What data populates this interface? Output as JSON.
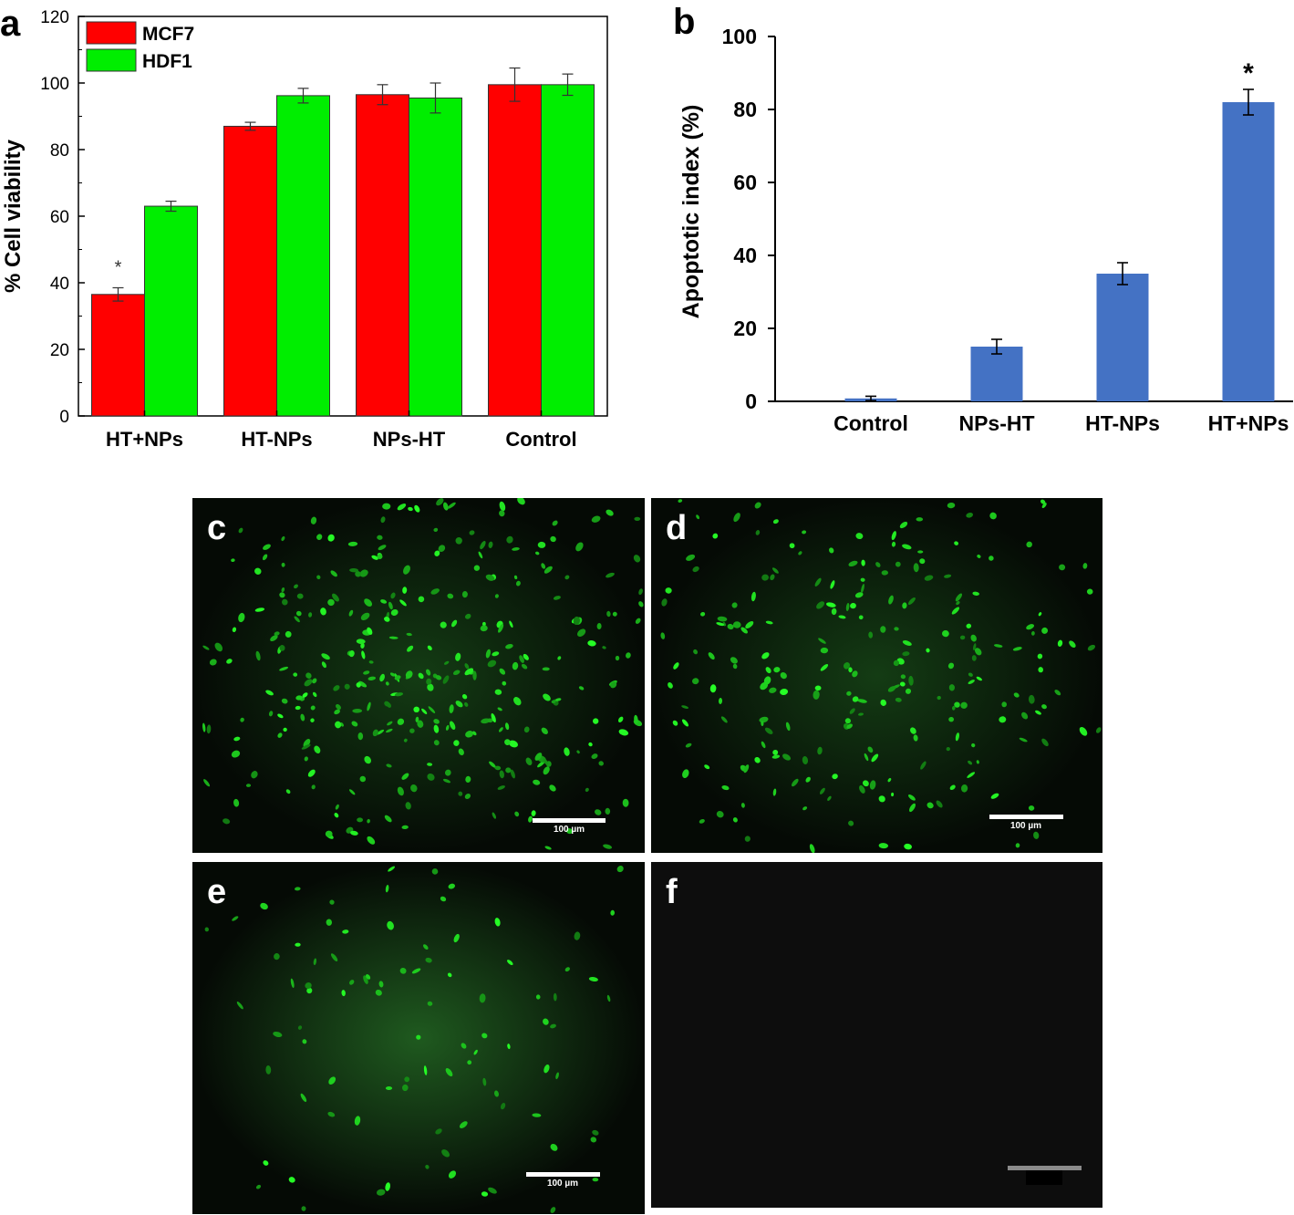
{
  "chart_data": [
    {
      "id": "a",
      "type": "bar",
      "panel_label": "a",
      "ylabel": "% Cell viability",
      "xlabel": "",
      "ylim": [
        0,
        120
      ],
      "yticks": [
        0,
        20,
        40,
        60,
        80,
        100,
        120
      ],
      "categories": [
        "HT+NPs",
        "HT-NPs",
        "NPs-HT",
        "Control"
      ],
      "series": [
        {
          "name": "MCF7",
          "color": "#ff0000",
          "values": [
            36.5,
            87,
            96.5,
            99.5
          ],
          "errors": [
            2,
            1.2,
            3,
            5
          ]
        },
        {
          "name": "HDF1",
          "color": "#00ee00",
          "values": [
            63,
            96.2,
            95.5,
            99.5
          ],
          "errors": [
            1.5,
            2.2,
            4.5,
            3.2
          ]
        }
      ],
      "annotations": [
        {
          "text": "*",
          "category": "HT+NPs",
          "series": "MCF7"
        }
      ],
      "legend": "top-left",
      "grid": false
    },
    {
      "id": "b",
      "type": "bar",
      "panel_label": "b",
      "ylabel": "Apoptotic index (%)",
      "xlabel": "",
      "ylim": [
        0,
        100
      ],
      "yticks": [
        0,
        20,
        40,
        60,
        80,
        100
      ],
      "categories": [
        "Control",
        "NPs-HT",
        "HT-NPs",
        "HT+NPs"
      ],
      "series": [
        {
          "color": "#4472c4",
          "values": [
            0.8,
            15,
            35,
            82
          ],
          "errors": [
            0.6,
            2,
            3,
            3.5
          ]
        }
      ],
      "annotations": [
        {
          "text": "*",
          "category": "HT+NPs"
        }
      ],
      "grid": false
    }
  ],
  "micrographs": [
    {
      "label": "c",
      "scale_text": "100 µm",
      "density": "high"
    },
    {
      "label": "d",
      "scale_text": "100 µm",
      "density": "medium"
    },
    {
      "label": "e",
      "scale_text": "100 µm",
      "density": "low"
    },
    {
      "label": "f",
      "scale_text": "",
      "density": "none"
    }
  ]
}
